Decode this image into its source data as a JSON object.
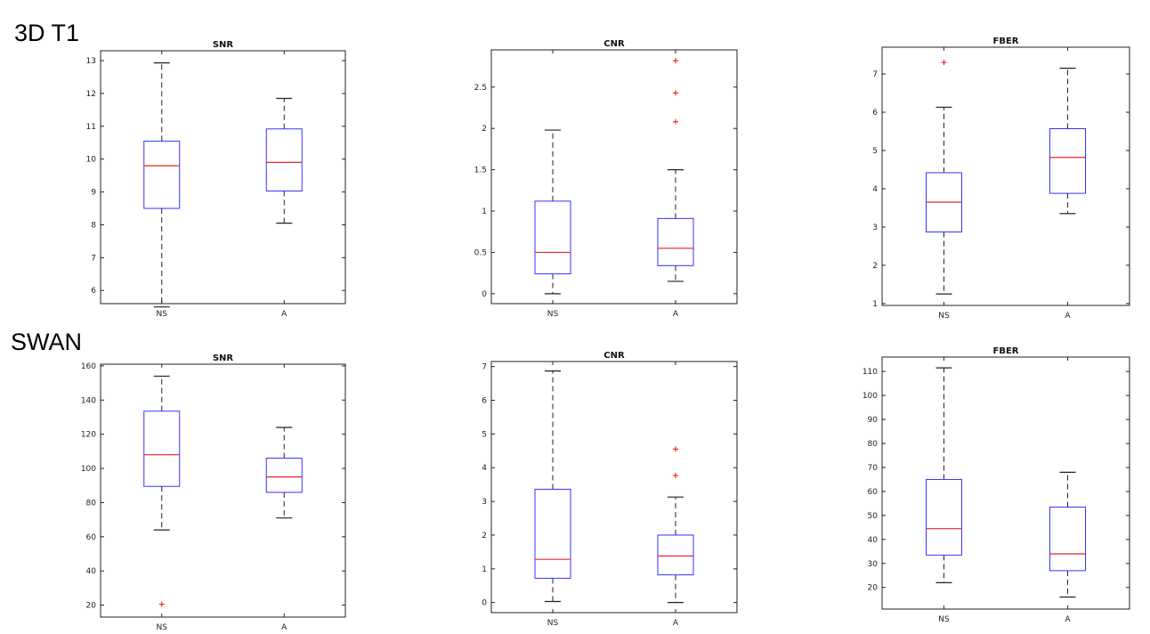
{
  "row_labels": [
    "3D T1",
    "SWAN"
  ],
  "colors": {
    "box": "#3333ff",
    "median": "#ee2222",
    "outlier": "#ff0000",
    "whisker": "#222222",
    "axis": "#222222"
  },
  "chart_data": [
    {
      "type": "boxplot",
      "title": "SNR",
      "categories": [
        "NS",
        "A"
      ],
      "ylim": [
        5.6,
        13.3
      ],
      "yticks": [
        "6",
        "7",
        "8",
        "9",
        "10",
        "11",
        "12",
        "13"
      ],
      "boxes": [
        {
          "min": 5.5,
          "q1": 8.5,
          "median": 9.8,
          "q3": 10.55,
          "max": 12.93,
          "outliers": []
        },
        {
          "min": 8.05,
          "q1": 9.03,
          "median": 9.9,
          "q3": 10.92,
          "max": 11.85,
          "outliers": []
        }
      ]
    },
    {
      "type": "boxplot",
      "title": "CNR",
      "categories": [
        "NS",
        "A"
      ],
      "ylim": [
        -0.12,
        2.95
      ],
      "yticks": [
        "0",
        "0.5",
        "1",
        "1.5",
        "2",
        "2.5"
      ],
      "boxes": [
        {
          "min": 0.0,
          "q1": 0.24,
          "median": 0.5,
          "q3": 1.12,
          "max": 1.98,
          "outliers": []
        },
        {
          "min": 0.15,
          "q1": 0.34,
          "median": 0.55,
          "q3": 0.91,
          "max": 1.5,
          "outliers": [
            2.08,
            2.43,
            2.82
          ]
        }
      ]
    },
    {
      "type": "boxplot",
      "title": "FBER",
      "categories": [
        "NS",
        "A"
      ],
      "ylim": [
        0.95,
        7.7
      ],
      "yticks": [
        "1",
        "2",
        "3",
        "4",
        "5",
        "6",
        "7"
      ],
      "boxes": [
        {
          "min": 1.25,
          "q1": 2.87,
          "median": 3.65,
          "q3": 4.42,
          "max": 6.13,
          "outliers": [
            7.3
          ]
        },
        {
          "min": 3.35,
          "q1": 3.88,
          "median": 4.82,
          "q3": 5.57,
          "max": 7.15,
          "outliers": []
        }
      ]
    },
    {
      "type": "boxplot",
      "title": "SNR",
      "categories": [
        "NS",
        "A"
      ],
      "ylim": [
        13,
        161
      ],
      "yticks": [
        "20",
        "40",
        "60",
        "80",
        "100",
        "120",
        "140",
        "160"
      ],
      "boxes": [
        {
          "min": 64,
          "q1": 89.5,
          "median": 108,
          "q3": 133.5,
          "max": 154,
          "outliers": [
            20.5
          ]
        },
        {
          "min": 71,
          "q1": 86,
          "median": 95,
          "q3": 106,
          "max": 124,
          "outliers": []
        }
      ]
    },
    {
      "type": "boxplot",
      "title": "CNR",
      "categories": [
        "NS",
        "A"
      ],
      "ylim": [
        -0.3,
        7.15
      ],
      "yticks": [
        "0",
        "1",
        "2",
        "3",
        "4",
        "5",
        "6",
        "7"
      ],
      "boxes": [
        {
          "min": 0.03,
          "q1": 0.72,
          "median": 1.28,
          "q3": 3.36,
          "max": 6.87,
          "outliers": []
        },
        {
          "min": 0.0,
          "q1": 0.82,
          "median": 1.38,
          "q3": 2.0,
          "max": 3.13,
          "outliers": [
            3.77,
            4.55
          ]
        }
      ]
    },
    {
      "type": "boxplot",
      "title": "FBER",
      "categories": [
        "NS",
        "A"
      ],
      "ylim": [
        11,
        116
      ],
      "yticks": [
        "20",
        "30",
        "40",
        "50",
        "60",
        "70",
        "80",
        "90",
        "100",
        "110"
      ],
      "boxes": [
        {
          "min": 22,
          "q1": 33.5,
          "median": 44.5,
          "q3": 65,
          "max": 111.5,
          "outliers": []
        },
        {
          "min": 16,
          "q1": 27,
          "median": 34,
          "q3": 53.5,
          "max": 68,
          "outliers": []
        }
      ]
    }
  ]
}
